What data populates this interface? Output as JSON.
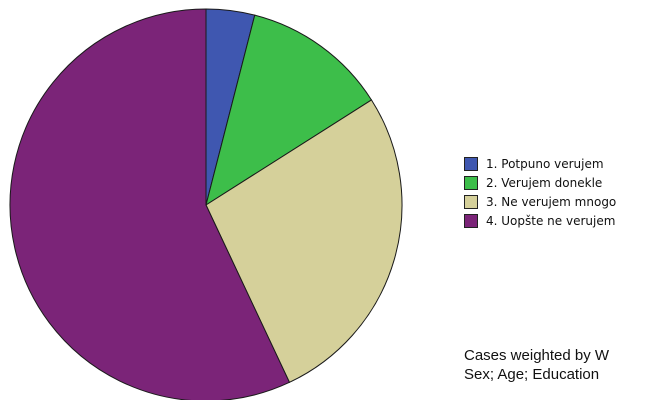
{
  "chart_data": {
    "type": "pie",
    "title": "",
    "categories": [
      "1. Potpuno verujem",
      "2. Verujem donekle",
      "3. Ne verujem mnogo",
      "4. Uopšte ne verujem"
    ],
    "values": [
      4,
      12,
      27,
      57
    ],
    "colors": [
      "#3F57B0",
      "#3DBE4A",
      "#D5D09A",
      "#7B2478"
    ],
    "legend_position": "right"
  },
  "footnote": {
    "line1": "Cases weighted by W",
    "line2": "Sex; Age; Education"
  }
}
